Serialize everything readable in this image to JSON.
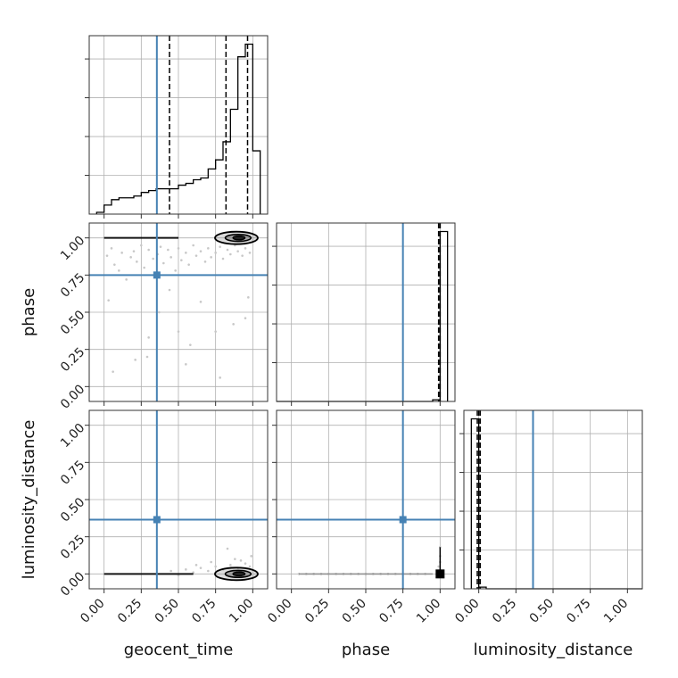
{
  "chart_data": {
    "type": "corner",
    "parameters": [
      "geocent_time",
      "phase",
      "luminosity_distance"
    ],
    "axis_range": [
      -0.1,
      1.1
    ],
    "tick_values": [
      0.0,
      0.25,
      0.5,
      0.75,
      1.0
    ],
    "tick_labels": [
      "0.00",
      "0.25",
      "0.50",
      "0.75",
      "1.00"
    ],
    "grid": true,
    "truths": {
      "geocent_time": 0.355,
      "phase": 0.75,
      "luminosity_distance": 0.365
    },
    "truth_color": "#4682b4",
    "quantiles": {
      "geocent_time": [
        0.44,
        0.82,
        0.965
      ],
      "phase": [
        0.99,
        1.0,
        1.0
      ],
      "luminosity_distance": [
        -0.01,
        0.0,
        0.01
      ]
    },
    "histograms": {
      "geocent_time": {
        "bin_edges": [
          -0.05,
          0.0,
          0.05,
          0.1,
          0.15,
          0.2,
          0.25,
          0.3,
          0.35,
          0.4,
          0.45,
          0.5,
          0.55,
          0.6,
          0.65,
          0.7,
          0.75,
          0.8,
          0.85,
          0.9,
          0.95,
          1.0,
          1.05
        ],
        "counts": [
          1,
          5,
          8,
          9,
          9,
          10,
          12,
          13,
          14,
          14,
          14,
          16,
          17,
          19,
          20,
          25,
          30,
          40,
          58,
          87,
          94,
          35
        ]
      },
      "phase": {
        "bin_edges": [
          -0.1,
          0.95,
          1.0,
          1.05
        ],
        "counts": [
          0,
          1,
          100
        ]
      },
      "luminosity_distance": {
        "bin_edges": [
          -0.05,
          0.0,
          0.05,
          1.1
        ],
        "counts": [
          100,
          1,
          0
        ]
      }
    },
    "contours_2d": [
      {
        "x": "geocent_time",
        "y": "phase",
        "density_peak": [
          0.94,
          1.0
        ],
        "horizontal_band": {
          "x_from": 0.0,
          "x_to": 0.5,
          "y": 1.0
        }
      },
      {
        "x": "geocent_time",
        "y": "luminosity_distance",
        "density_peak": [
          0.94,
          0.0
        ],
        "horizontal_band": {
          "x_from": 0.0,
          "x_to": 0.6,
          "y": 0.0
        }
      },
      {
        "x": "phase",
        "y": "luminosity_distance",
        "density_peak": [
          1.0,
          0.0
        ],
        "horizontal_band": {
          "x_from": 0.05,
          "x_to": 0.95,
          "y": 0.0
        }
      }
    ],
    "scatter_points": {
      "geocent_time_vs_phase": [
        [
          0.02,
          0.88
        ],
        [
          0.05,
          0.93
        ],
        [
          0.07,
          0.82
        ],
        [
          0.1,
          0.78
        ],
        [
          0.12,
          0.9
        ],
        [
          0.15,
          0.72
        ],
        [
          0.18,
          0.87
        ],
        [
          0.2,
          0.91
        ],
        [
          0.22,
          0.84
        ],
        [
          0.25,
          0.95
        ],
        [
          0.27,
          0.8
        ],
        [
          0.3,
          0.92
        ],
        [
          0.33,
          0.86
        ],
        [
          0.36,
          0.89
        ],
        [
          0.38,
          0.94
        ],
        [
          0.4,
          0.83
        ],
        [
          0.43,
          0.92
        ],
        [
          0.45,
          0.87
        ],
        [
          0.48,
          0.78
        ],
        [
          0.5,
          0.93
        ],
        [
          0.52,
          0.85
        ],
        [
          0.55,
          0.9
        ],
        [
          0.57,
          0.82
        ],
        [
          0.6,
          0.95
        ],
        [
          0.62,
          0.88
        ],
        [
          0.65,
          0.91
        ],
        [
          0.68,
          0.84
        ],
        [
          0.7,
          0.93
        ],
        [
          0.72,
          0.87
        ],
        [
          0.75,
          0.9
        ],
        [
          0.78,
          0.94
        ],
        [
          0.8,
          0.86
        ],
        [
          0.83,
          0.92
        ],
        [
          0.85,
          0.89
        ],
        [
          0.88,
          0.95
        ],
        [
          0.9,
          0.91
        ],
        [
          0.93,
          0.88
        ],
        [
          0.95,
          0.93
        ],
        [
          0.98,
          0.9
        ],
        [
          0.03,
          0.58
        ],
        [
          0.06,
          0.1
        ],
        [
          0.21,
          0.18
        ],
        [
          0.29,
          0.2
        ],
        [
          0.37,
          0.5
        ],
        [
          0.5,
          0.37
        ],
        [
          0.55,
          0.15
        ],
        [
          0.65,
          0.57
        ],
        [
          0.75,
          0.37
        ],
        [
          0.78,
          0.06
        ],
        [
          0.95,
          0.46
        ],
        [
          0.87,
          0.42
        ],
        [
          0.97,
          0.6
        ],
        [
          0.44,
          0.65
        ],
        [
          0.3,
          0.33
        ],
        [
          0.58,
          0.28
        ]
      ],
      "geocent_time_vs_luminosity_distance": [
        [
          0.45,
          0.02
        ],
        [
          0.5,
          -0.01
        ],
        [
          0.55,
          0.03
        ],
        [
          0.6,
          0.01
        ],
        [
          0.65,
          0.04
        ],
        [
          0.7,
          0.02
        ],
        [
          0.75,
          0.05
        ],
        [
          0.8,
          0.03
        ],
        [
          0.85,
          0.06
        ],
        [
          0.9,
          0.04
        ],
        [
          0.95,
          0.07
        ],
        [
          0.98,
          0.05
        ],
        [
          0.83,
          0.17
        ],
        [
          0.92,
          0.09
        ],
        [
          0.62,
          0.06
        ],
        [
          0.72,
          0.08
        ],
        [
          0.88,
          0.1
        ],
        [
          0.99,
          0.12
        ]
      ],
      "phase_vs_luminosity_distance": [
        [
          0.05,
          0.0
        ],
        [
          0.1,
          0.0
        ],
        [
          0.15,
          0.0
        ],
        [
          0.2,
          0.0
        ],
        [
          0.25,
          0.0
        ],
        [
          0.3,
          0.0
        ],
        [
          0.35,
          0.0
        ],
        [
          0.4,
          0.0
        ],
        [
          0.45,
          0.0
        ],
        [
          0.5,
          0.0
        ],
        [
          0.55,
          0.0
        ],
        [
          0.6,
          0.0
        ],
        [
          0.65,
          0.0
        ],
        [
          0.7,
          0.0
        ],
        [
          0.75,
          0.0
        ],
        [
          0.8,
          0.0
        ],
        [
          0.85,
          0.0
        ],
        [
          0.9,
          0.0
        ],
        [
          1.0,
          0.18
        ],
        [
          1.0,
          0.12
        ],
        [
          1.0,
          0.08
        ],
        [
          0.99,
          0.05
        ]
      ]
    }
  }
}
